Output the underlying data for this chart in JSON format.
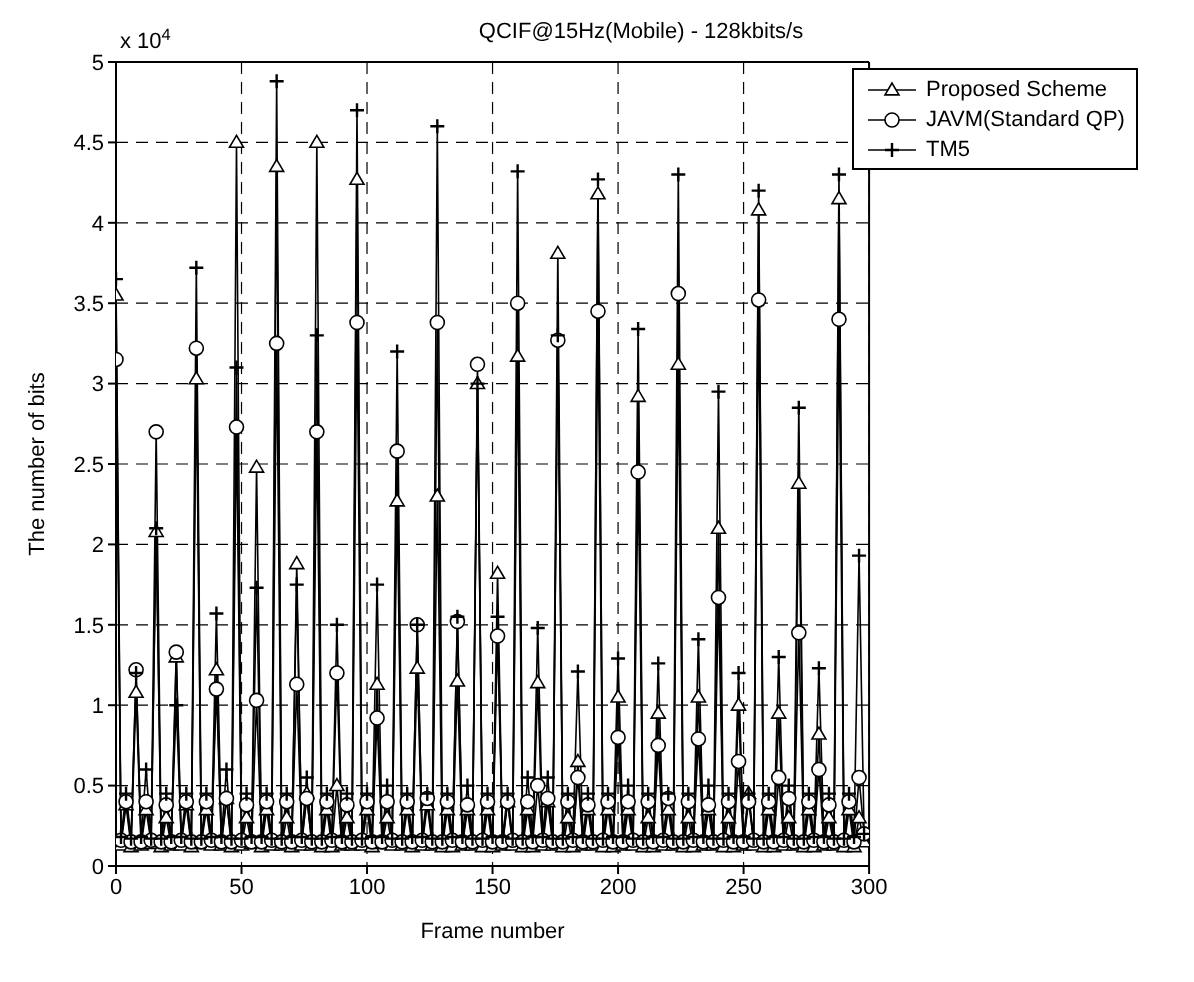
{
  "chart_data": {
    "type": "line",
    "title": "QCIF@15Hz(Mobile) - 128kbits/s",
    "xlabel": "Frame number",
    "ylabel": "The number of bits",
    "annotations": [
      "x 10$^{4}$"
    ],
    "x": [
      0,
      2,
      4,
      6,
      8,
      10,
      12,
      14,
      16,
      18,
      20,
      22,
      24,
      26,
      28,
      30,
      32,
      34,
      36,
      38,
      40,
      42,
      44,
      46,
      48,
      50,
      52,
      54,
      56,
      58,
      60,
      62,
      64,
      66,
      68,
      70,
      72,
      74,
      76,
      78,
      80,
      82,
      84,
      86,
      88,
      90,
      92,
      94,
      96,
      98,
      100,
      102,
      104,
      106,
      108,
      110,
      112,
      114,
      116,
      118,
      120,
      122,
      124,
      126,
      128,
      130,
      132,
      134,
      136,
      138,
      140,
      142,
      144,
      146,
      148,
      150,
      152,
      154,
      156,
      158,
      160,
      162,
      164,
      166,
      168,
      170,
      172,
      174,
      176,
      178,
      180,
      182,
      184,
      186,
      188,
      190,
      192,
      194,
      196,
      198,
      200,
      202,
      204,
      206,
      208,
      210,
      212,
      214,
      216,
      218,
      220,
      222,
      224,
      226,
      228,
      230,
      232,
      234,
      236,
      238,
      240,
      242,
      244,
      246,
      248,
      250,
      252,
      254,
      256,
      258,
      260,
      262,
      264,
      266,
      268,
      270,
      272,
      274,
      276,
      278,
      280,
      282,
      284,
      286,
      288,
      290,
      292,
      294,
      296,
      298
    ],
    "series": [
      {
        "name": "Proposed Scheme",
        "color": "#000000",
        "marker": "triangle",
        "values": [
          3.55,
          0.13,
          0.38,
          0.12,
          1.08,
          0.13,
          0.35,
          0.14,
          2.08,
          0.12,
          0.3,
          0.13,
          1.3,
          0.13,
          0.38,
          0.12,
          3.03,
          0.14,
          0.35,
          0.13,
          1.22,
          0.13,
          0.42,
          0.12,
          4.5,
          0.13,
          0.3,
          0.14,
          2.48,
          0.12,
          0.35,
          0.13,
          4.35,
          0.13,
          0.3,
          0.12,
          1.88,
          0.13,
          0.45,
          0.13,
          4.5,
          0.12,
          0.35,
          0.12,
          0.5,
          0.13,
          0.3,
          0.13,
          4.27,
          0.13,
          0.35,
          0.12,
          1.13,
          0.14,
          0.3,
          0.13,
          2.27,
          0.13,
          0.35,
          0.12,
          1.23,
          0.13,
          0.38,
          0.13,
          2.3,
          0.12,
          0.35,
          0.12,
          1.15,
          0.13,
          0.35,
          0.13,
          3.0,
          0.12,
          0.35,
          0.12,
          1.82,
          0.13,
          0.4,
          0.13,
          3.17,
          0.12,
          0.35,
          0.12,
          1.14,
          0.13,
          0.4,
          0.13,
          3.81,
          0.12,
          0.3,
          0.12,
          0.65,
          0.13,
          0.35,
          0.13,
          4.18,
          0.12,
          0.35,
          0.12,
          1.05,
          0.13,
          0.35,
          0.13,
          2.92,
          0.12,
          0.3,
          0.12,
          0.95,
          0.13,
          0.35,
          0.13,
          3.12,
          0.12,
          0.3,
          0.12,
          1.05,
          0.13,
          0.35,
          0.13,
          2.1,
          0.12,
          0.3,
          0.12,
          1.0,
          0.13,
          0.45,
          0.13,
          4.08,
          0.12,
          0.35,
          0.12,
          0.95,
          0.13,
          0.3,
          0.13,
          2.38,
          0.12,
          0.35,
          0.12,
          0.82,
          0.13,
          0.3,
          0.13,
          4.15,
          0.12,
          0.35,
          0.12,
          0.3,
          0.15
        ]
      },
      {
        "name": "JAVM(Standard QP)",
        "color": "#000000",
        "marker": "circle",
        "values": [
          3.15,
          0.16,
          0.4,
          0.15,
          1.22,
          0.15,
          0.4,
          0.16,
          2.7,
          0.15,
          0.38,
          0.15,
          1.33,
          0.16,
          0.4,
          0.15,
          3.22,
          0.15,
          0.4,
          0.16,
          1.1,
          0.15,
          0.42,
          0.15,
          2.73,
          0.16,
          0.38,
          0.15,
          1.03,
          0.15,
          0.4,
          0.16,
          3.25,
          0.15,
          0.4,
          0.15,
          1.13,
          0.16,
          0.42,
          0.15,
          2.7,
          0.15,
          0.4,
          0.16,
          1.2,
          0.15,
          0.38,
          0.15,
          3.38,
          0.16,
          0.4,
          0.15,
          0.92,
          0.15,
          0.4,
          0.16,
          2.58,
          0.15,
          0.4,
          0.15,
          1.5,
          0.16,
          0.42,
          0.15,
          3.38,
          0.15,
          0.4,
          0.16,
          1.52,
          0.15,
          0.38,
          0.15,
          3.12,
          0.16,
          0.4,
          0.15,
          1.43,
          0.15,
          0.4,
          0.16,
          3.5,
          0.15,
          0.4,
          0.15,
          0.5,
          0.16,
          0.42,
          0.15,
          3.27,
          0.15,
          0.4,
          0.16,
          0.55,
          0.15,
          0.38,
          0.15,
          3.45,
          0.16,
          0.4,
          0.15,
          0.8,
          0.15,
          0.4,
          0.16,
          2.45,
          0.15,
          0.4,
          0.15,
          0.75,
          0.16,
          0.42,
          0.15,
          3.56,
          0.15,
          0.4,
          0.16,
          0.79,
          0.15,
          0.38,
          0.15,
          1.67,
          0.16,
          0.4,
          0.15,
          0.65,
          0.15,
          0.4,
          0.16,
          3.52,
          0.15,
          0.4,
          0.15,
          0.55,
          0.16,
          0.42,
          0.15,
          1.45,
          0.15,
          0.4,
          0.16,
          0.6,
          0.15,
          0.38,
          0.15,
          3.4,
          0.16,
          0.4,
          0.15,
          0.55,
          0.2
        ]
      },
      {
        "name": "TM5",
        "color": "#000000",
        "marker": "cross",
        "values": [
          3.65,
          0.18,
          0.45,
          0.17,
          1.2,
          0.18,
          0.6,
          0.17,
          2.1,
          0.17,
          0.45,
          0.18,
          1.0,
          0.18,
          0.45,
          0.17,
          3.72,
          0.17,
          0.45,
          0.18,
          1.57,
          0.18,
          0.6,
          0.17,
          3.1,
          0.17,
          0.45,
          0.18,
          1.73,
          0.18,
          0.45,
          0.17,
          4.88,
          0.17,
          0.45,
          0.18,
          1.75,
          0.18,
          0.55,
          0.17,
          3.3,
          0.17,
          0.45,
          0.18,
          1.5,
          0.18,
          0.45,
          0.17,
          4.7,
          0.17,
          0.45,
          0.18,
          1.75,
          0.18,
          0.5,
          0.17,
          3.2,
          0.17,
          0.45,
          0.18,
          1.5,
          0.18,
          0.45,
          0.17,
          4.6,
          0.17,
          0.45,
          0.18,
          1.55,
          0.18,
          0.5,
          0.17,
          3.0,
          0.17,
          0.45,
          0.18,
          1.55,
          0.18,
          0.45,
          0.17,
          4.32,
          0.17,
          0.55,
          0.18,
          1.48,
          0.18,
          0.55,
          0.17,
          3.3,
          0.17,
          0.45,
          0.18,
          1.21,
          0.18,
          0.45,
          0.17,
          4.27,
          0.17,
          0.45,
          0.18,
          1.29,
          0.18,
          0.5,
          0.17,
          3.34,
          0.17,
          0.45,
          0.18,
          1.26,
          0.18,
          0.45,
          0.17,
          4.3,
          0.17,
          0.45,
          0.18,
          1.41,
          0.18,
          0.5,
          0.17,
          2.95,
          0.17,
          0.45,
          0.18,
          1.2,
          0.18,
          0.45,
          0.17,
          4.2,
          0.17,
          0.45,
          0.18,
          1.3,
          0.18,
          0.5,
          0.17,
          2.85,
          0.17,
          0.45,
          0.18,
          1.23,
          0.18,
          0.45,
          0.17,
          4.3,
          0.17,
          0.45,
          0.18,
          1.93,
          0.2
        ]
      }
    ],
    "xlim": [
      0,
      300
    ],
    "xticks": [
      0,
      50,
      100,
      150,
      200,
      250,
      300
    ],
    "ylim": [
      0,
      5
    ],
    "yticks": [
      0,
      0.5,
      1,
      1.5,
      2,
      2.5,
      3,
      3.5,
      4,
      4.5,
      5
    ],
    "grid": true,
    "legend": "top right",
    "line_style": "solid"
  }
}
